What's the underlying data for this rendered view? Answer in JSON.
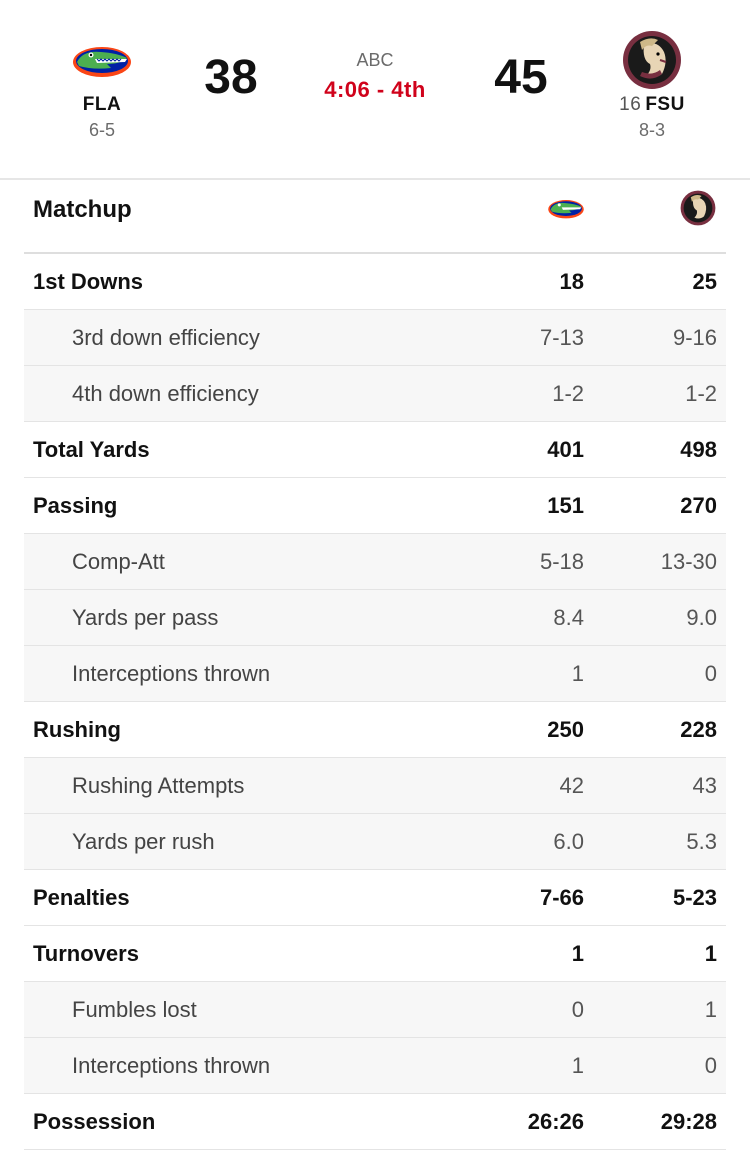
{
  "game": {
    "network": "ABC",
    "clock": "4:06 - 4th",
    "away": {
      "abbr": "FLA",
      "record": "6-5",
      "score": "38",
      "logo": "gators-logo"
    },
    "home": {
      "rank": "16",
      "abbr": "FSU",
      "record": "8-3",
      "score": "45",
      "logo": "seminoles-logo"
    }
  },
  "matchup": {
    "title": "Matchup",
    "rows": [
      {
        "label": "1st Downs",
        "away": "18",
        "home": "25",
        "sub": false
      },
      {
        "label": "3rd down efficiency",
        "away": "7-13",
        "home": "9-16",
        "sub": true
      },
      {
        "label": "4th down efficiency",
        "away": "1-2",
        "home": "1-2",
        "sub": true
      },
      {
        "label": "Total Yards",
        "away": "401",
        "home": "498",
        "sub": false
      },
      {
        "label": "Passing",
        "away": "151",
        "home": "270",
        "sub": false
      },
      {
        "label": "Comp-Att",
        "away": "5-18",
        "home": "13-30",
        "sub": true
      },
      {
        "label": "Yards per pass",
        "away": "8.4",
        "home": "9.0",
        "sub": true
      },
      {
        "label": "Interceptions thrown",
        "away": "1",
        "home": "0",
        "sub": true
      },
      {
        "label": "Rushing",
        "away": "250",
        "home": "228",
        "sub": false
      },
      {
        "label": "Rushing Attempts",
        "away": "42",
        "home": "43",
        "sub": true
      },
      {
        "label": "Yards per rush",
        "away": "6.0",
        "home": "5.3",
        "sub": true
      },
      {
        "label": "Penalties",
        "away": "7-66",
        "home": "5-23",
        "sub": false
      },
      {
        "label": "Turnovers",
        "away": "1",
        "home": "1",
        "sub": false
      },
      {
        "label": "Fumbles lost",
        "away": "0",
        "home": "1",
        "sub": true
      },
      {
        "label": "Interceptions thrown",
        "away": "1",
        "home": "0",
        "sub": true
      },
      {
        "label": "Possession",
        "away": "26:26",
        "home": "29:28",
        "sub": false
      }
    ]
  },
  "colors": {
    "clock": "#d0021b",
    "gatorGreen": "#2e7d32",
    "gatorBlue": "#0021a5",
    "gatorOrange": "#fa4616",
    "fsuGarnet": "#782f40",
    "fsuGold": "#ceb888"
  }
}
